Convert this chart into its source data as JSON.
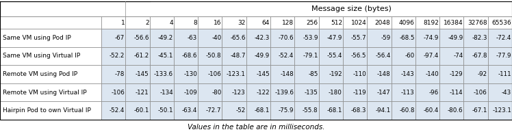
{
  "title": "Message size (bytes)",
  "subtitle": "Values in the table are in milliseconds.",
  "col_headers": [
    "1",
    "2",
    "4",
    "8",
    "16",
    "32",
    "64",
    "128",
    "256",
    "512",
    "1024",
    "2048",
    "4096",
    "8192",
    "16384",
    "32768",
    "65536"
  ],
  "row_headers": [
    "Same VM using Pod IP",
    "Same VM using Virtual IP",
    "Remote VM using Pod IP",
    "Remote VM using Virtual IP",
    "Hairpin Pod to own Virtual IP"
  ],
  "data": [
    [
      "-67",
      "-56.6",
      "-49.2",
      "-63",
      "-40",
      "-65.6",
      "-42.3",
      "-70.6",
      "-53.9",
      "-47.9",
      "-55.7",
      "-59",
      "-68.5",
      "-74.9",
      "-49.9",
      "-82.3",
      "-72.4"
    ],
    [
      "-52.2",
      "-61.2",
      "-45.1",
      "-68.6",
      "-50.8",
      "-48.7",
      "-49.9",
      "-52.4",
      "-79.1",
      "-55.4",
      "-56.5",
      "-56.4",
      "-60",
      "-97.4",
      "-74",
      "-67.8",
      "-77.9"
    ],
    [
      "-78",
      "-145",
      "-133.6",
      "-130",
      "-106",
      "-123.1",
      "-145",
      "-148",
      "-85",
      "-192",
      "-110",
      "-148",
      "-143",
      "-140",
      "-129",
      "-92",
      "-111"
    ],
    [
      "-106",
      "-121",
      "-134",
      "-109",
      "-80",
      "-123",
      "-122",
      "-139.6",
      "-135",
      "-180",
      "-119",
      "-147",
      "-113",
      "-96",
      "-114",
      "-106",
      "-43"
    ],
    [
      "-52.4",
      "-60.1",
      "-50.1",
      "-63.4",
      "-72.7",
      "-52",
      "-68.1",
      "-75.9",
      "-55.8",
      "-68.1",
      "-68.3",
      "-94.1",
      "-60.8",
      "-60.4",
      "-80.6",
      "-67.1",
      "-123.1"
    ]
  ],
  "cell_bg": "#dce6f1",
  "header_bg": "#ffffff",
  "row_label_bg": "#ffffff",
  "border_color": "#888888",
  "font_size": 6.5,
  "title_font_size": 8.0,
  "subtitle_font_size": 7.5,
  "fig_width": 7.48,
  "fig_height": 1.93
}
